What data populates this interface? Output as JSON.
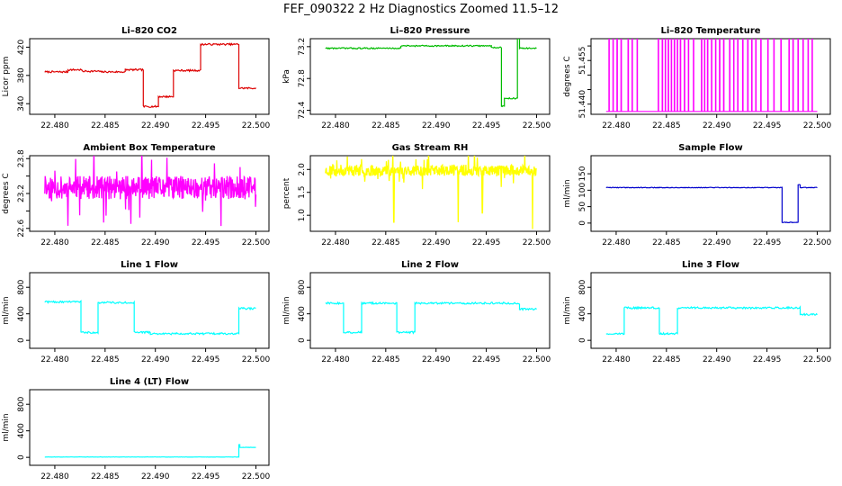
{
  "title": "FEF_090322  2 Hz Diagnostics Zoomed 11.5–12",
  "x_ticks": [
    "22.480",
    "22.485",
    "22.490",
    "22.495",
    "22.500"
  ],
  "chart_data": [
    {
      "type": "line",
      "title": "Li–820 CO2",
      "ylabel": "Licor ppm",
      "color": "#dd0000",
      "xlim": [
        22.4775,
        22.5013
      ],
      "ylim": [
        325,
        432
      ],
      "y_ticks": [
        340,
        380,
        420
      ],
      "y_tick_labels": [
        "340",
        "380",
        "420"
      ],
      "style": "line",
      "noise": 1.2,
      "segments": [
        {
          "x0": 22.479,
          "x1": 22.4813,
          "y": 385
        },
        {
          "x0": 22.4813,
          "x1": 22.4827,
          "y": 388
        },
        {
          "x0": 22.4827,
          "x1": 22.4845,
          "y": 386
        },
        {
          "x0": 22.4845,
          "x1": 22.487,
          "y": 385
        },
        {
          "x0": 22.487,
          "x1": 22.4888,
          "y": 388
        },
        {
          "x0": 22.4888,
          "x1": 22.4903,
          "y": 336
        },
        {
          "x0": 22.4903,
          "x1": 22.4918,
          "y": 350
        },
        {
          "x0": 22.4918,
          "x1": 22.4945,
          "y": 387
        },
        {
          "x0": 22.4945,
          "x1": 22.4983,
          "y": 424
        },
        {
          "x0": 22.4983,
          "x1": 22.5,
          "y": 362
        }
      ]
    },
    {
      "type": "line",
      "title": "Li–820 Pressure",
      "ylabel": "kPa",
      "color": "#00bb00",
      "xlim": [
        22.4775,
        22.5013
      ],
      "ylim": [
        72.35,
        73.3
      ],
      "y_ticks": [
        72.4,
        72.8,
        73.2
      ],
      "y_tick_labels": [
        "72.4",
        "72.8",
        "73.2"
      ],
      "style": "line",
      "noise": 0.008,
      "segments": [
        {
          "x0": 22.479,
          "x1": 22.4865,
          "y": 73.18
        },
        {
          "x0": 22.4865,
          "x1": 22.4955,
          "y": 73.21
        },
        {
          "x0": 22.4955,
          "x1": 22.4965,
          "y": 73.19
        },
        {
          "x0": 22.4965,
          "x1": 22.4968,
          "y": 72.45
        },
        {
          "x0": 22.4968,
          "x1": 22.4981,
          "y": 72.55
        },
        {
          "x0": 22.4981,
          "x1": 22.4983,
          "y": 73.3
        },
        {
          "x0": 22.4983,
          "x1": 22.5,
          "y": 73.18
        }
      ]
    },
    {
      "type": "line",
      "title": "Li–820 Temperature",
      "ylabel": "degrees C",
      "color": "#ff00ff",
      "xlim": [
        22.4775,
        22.5013
      ],
      "ylim": [
        51.4365,
        51.4625
      ],
      "y_ticks": [
        51.44,
        51.445,
        51.45,
        51.455,
        51.46
      ],
      "y_tick_labels": [
        "51.440",
        "",
        "",
        "51.455",
        ""
      ],
      "style": "binary",
      "base": 51.4375,
      "top": 51.4625,
      "spikes": [
        22.4793,
        22.4797,
        22.4801,
        22.4805,
        22.4812,
        22.4816,
        22.4821,
        22.4842,
        22.4846,
        22.4849,
        22.4852,
        22.4855,
        22.4858,
        22.4861,
        22.4864,
        22.4868,
        22.4872,
        22.4877,
        22.4885,
        22.4888,
        22.4891,
        22.4895,
        22.4899,
        22.4903,
        22.4907,
        22.4913,
        22.4917,
        22.4921,
        22.4926,
        22.4931,
        22.4935,
        22.4939,
        22.4944,
        22.4951,
        22.4957,
        22.4964,
        22.4972,
        22.4976,
        22.4981,
        22.4986,
        22.4991,
        22.4995
      ]
    },
    {
      "type": "line",
      "title": "Ambient Box Temperature",
      "ylabel": "degrees C",
      "color": "#ff00ff",
      "xlim": [
        22.4775,
        22.5013
      ],
      "ylim": [
        22.55,
        23.85
      ],
      "y_ticks": [
        22.6,
        22.9,
        23.2,
        23.5,
        23.8
      ],
      "y_tick_labels": [
        "22.6",
        "",
        "23.2",
        "",
        "23.8"
      ],
      "style": "noise",
      "center": 23.3,
      "amp": 0.2,
      "spike": 0.6,
      "seed": 11
    },
    {
      "type": "line",
      "title": "Gas Stream RH",
      "ylabel": "percent",
      "color": "#ffff00",
      "xlim": [
        22.4775,
        22.5013
      ],
      "ylim": [
        0.65,
        2.3
      ],
      "y_ticks": [
        1.0,
        1.5,
        2.0
      ],
      "y_tick_labels": [
        "1.0",
        "1.5",
        "2.0"
      ],
      "style": "noise",
      "center": 1.98,
      "amp": 0.12,
      "spike": 0.35,
      "seed": 23,
      "dips": [
        {
          "x": 22.4858,
          "y": 0.85
        },
        {
          "x": 22.4922,
          "y": 0.85
        },
        {
          "x": 22.4946,
          "y": 1.05
        },
        {
          "x": 22.4996,
          "y": 0.7
        }
      ]
    },
    {
      "type": "line",
      "title": "Sample Flow",
      "ylabel": "ml/min",
      "color": "#0000cc",
      "xlim": [
        22.4775,
        22.5013
      ],
      "ylim": [
        -25,
        205
      ],
      "y_ticks": [
        0,
        50,
        100,
        150
      ],
      "y_tick_labels": [
        "0",
        "50",
        "100",
        "150"
      ],
      "style": "line",
      "noise": 1.0,
      "segments": [
        {
          "x0": 22.479,
          "x1": 22.4965,
          "y": 108
        },
        {
          "x0": 22.4965,
          "x1": 22.4981,
          "y": 2
        },
        {
          "x0": 22.4981,
          "x1": 22.4983,
          "y": 117
        },
        {
          "x0": 22.4983,
          "x1": 22.5,
          "y": 108
        }
      ]
    },
    {
      "type": "line",
      "title": "Line 1 Flow",
      "ylabel": "ml/min",
      "color": "#00ffff",
      "xlim": [
        22.4775,
        22.5013
      ],
      "ylim": [
        -120,
        1020
      ],
      "y_ticks": [
        0,
        400,
        800
      ],
      "y_tick_labels": [
        "0",
        "400",
        "800"
      ],
      "style": "line",
      "noise": 14,
      "segments": [
        {
          "x0": 22.479,
          "x1": 22.4826,
          "y": 580
        },
        {
          "x0": 22.4826,
          "x1": 22.4843,
          "y": 120
        },
        {
          "x0": 22.4843,
          "x1": 22.4879,
          "y": 570
        },
        {
          "x0": 22.4879,
          "x1": 22.4895,
          "y": 120
        },
        {
          "x0": 22.4895,
          "x1": 22.4983,
          "y": 100
        },
        {
          "x0": 22.4983,
          "x1": 22.5,
          "y": 480
        }
      ]
    },
    {
      "type": "line",
      "title": "Line 2 Flow",
      "ylabel": "ml/min",
      "color": "#00ffff",
      "xlim": [
        22.4775,
        22.5013
      ],
      "ylim": [
        -120,
        1020
      ],
      "y_ticks": [
        0,
        400,
        800
      ],
      "y_tick_labels": [
        "0",
        "400",
        "800"
      ],
      "style": "line",
      "noise": 14,
      "segments": [
        {
          "x0": 22.479,
          "x1": 22.4808,
          "y": 560
        },
        {
          "x0": 22.4808,
          "x1": 22.4826,
          "y": 120
        },
        {
          "x0": 22.4826,
          "x1": 22.4861,
          "y": 560
        },
        {
          "x0": 22.4861,
          "x1": 22.4879,
          "y": 120
        },
        {
          "x0": 22.4879,
          "x1": 22.4983,
          "y": 560
        },
        {
          "x0": 22.4983,
          "x1": 22.5,
          "y": 470
        }
      ]
    },
    {
      "type": "line",
      "title": "Line 3 Flow",
      "ylabel": "ml/min",
      "color": "#00ffff",
      "xlim": [
        22.4775,
        22.5013
      ],
      "ylim": [
        -120,
        1020
      ],
      "y_ticks": [
        0,
        400,
        800
      ],
      "y_tick_labels": [
        "0",
        "400",
        "800"
      ],
      "style": "line",
      "noise": 14,
      "segments": [
        {
          "x0": 22.479,
          "x1": 22.4808,
          "y": 100
        },
        {
          "x0": 22.4808,
          "x1": 22.4843,
          "y": 490
        },
        {
          "x0": 22.4843,
          "x1": 22.4861,
          "y": 100
        },
        {
          "x0": 22.4861,
          "x1": 22.4983,
          "y": 490
        },
        {
          "x0": 22.4983,
          "x1": 22.5,
          "y": 390
        }
      ]
    },
    {
      "type": "line",
      "title": "Line 4 (LT) Flow",
      "ylabel": "ml/min",
      "color": "#00ffff",
      "xlim": [
        22.4775,
        22.5013
      ],
      "ylim": [
        -120,
        1020
      ],
      "y_ticks": [
        0,
        400,
        800
      ],
      "y_tick_labels": [
        "0",
        "400",
        "800"
      ],
      "style": "line",
      "noise": 2,
      "segments": [
        {
          "x0": 22.479,
          "x1": 22.4983,
          "y": 5
        },
        {
          "x0": 22.4983,
          "x1": 22.4984,
          "y": 190
        },
        {
          "x0": 22.4984,
          "x1": 22.5,
          "y": 150
        }
      ]
    }
  ]
}
